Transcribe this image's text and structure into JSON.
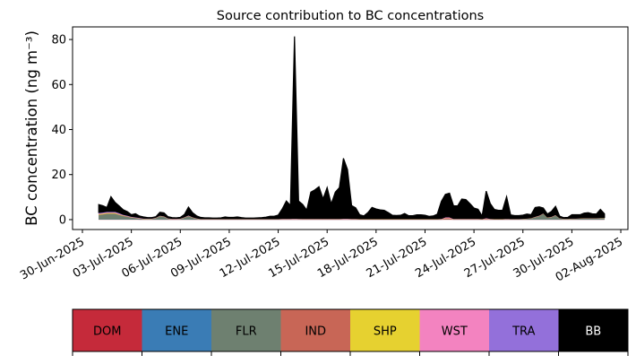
{
  "chart_data": {
    "type": "area",
    "stacked": true,
    "title": "Source contribution to BC concentrations",
    "xlabel": "",
    "ylabel": "BC concentration (ng m⁻³)",
    "x_start": "2025-07-01T00:00:00Z",
    "interval_hours": 6,
    "xlim": [
      "2025-06-29T09:30:00Z",
      "2025-08-02T10:30:00Z"
    ],
    "ylim": [
      -4.4,
      85.6
    ],
    "yticks": [
      0,
      20,
      40,
      60,
      80
    ],
    "xticks": [
      {
        "date": "2025-06-30",
        "label": "30-Jun-2025"
      },
      {
        "date": "2025-07-03",
        "label": "03-Jul-2025"
      },
      {
        "date": "2025-07-06",
        "label": "06-Jul-2025"
      },
      {
        "date": "2025-07-09",
        "label": "09-Jul-2025"
      },
      {
        "date": "2025-07-12",
        "label": "12-Jul-2025"
      },
      {
        "date": "2025-07-15",
        "label": "15-Jul-2025"
      },
      {
        "date": "2025-07-18",
        "label": "18-Jul-2025"
      },
      {
        "date": "2025-07-21",
        "label": "21-Jul-2025"
      },
      {
        "date": "2025-07-24",
        "label": "24-Jul-2025"
      },
      {
        "date": "2025-07-27",
        "label": "27-Jul-2025"
      },
      {
        "date": "2025-07-30",
        "label": "30-Jul-2025"
      },
      {
        "date": "2025-08-02",
        "label": "02-Aug-2025"
      }
    ],
    "grid": false,
    "legend_placement": "bottom",
    "series": [
      {
        "name": "DOM",
        "color": "#c52a3a",
        "text_color": "#000000",
        "values": [
          0.1,
          0.1,
          0.1,
          0.1,
          0.1,
          0.1,
          0.1,
          0.1,
          0.1,
          0.1,
          0.05,
          0.05,
          0.05,
          0.05,
          0.05,
          0.05,
          0.05,
          0.05,
          0.05,
          0.05,
          0.05,
          0.05,
          0.05,
          0.05,
          0.05,
          0.05,
          0.05,
          0.05,
          0.05,
          0.05,
          0.05,
          0.05,
          0.05,
          0.05,
          0.05,
          0.05,
          0.05,
          0.05,
          0.05,
          0.05,
          0.05,
          0.05,
          0.05,
          0.05,
          0.05,
          0.05,
          0.05,
          0.05,
          0.05,
          0.05,
          0.05,
          0.05,
          0.05,
          0.05,
          0.05,
          0.05,
          0.05,
          0.05,
          0.05,
          0.05,
          0.05,
          0.05,
          0.05,
          0.05,
          0.05,
          0.05,
          0.05,
          0.05,
          0.05,
          0.05,
          0.05,
          0.05,
          0.05,
          0.05,
          0.05,
          0.05,
          0.05,
          0.05,
          0.05,
          0.05,
          0.05,
          0.05,
          0.05,
          0.05,
          0.05,
          0.1,
          0.1,
          0.05,
          0.05,
          0.05,
          0.05,
          0.05,
          0.05,
          0.05,
          0.05,
          0.05,
          0.05,
          0.05,
          0.05,
          0.05,
          0.05,
          0.05,
          0.05,
          0.05,
          0.05,
          0.05,
          0.05,
          0.05,
          0.05,
          0.05,
          0.05,
          0.05,
          0.05,
          0.05,
          0.05,
          0.05,
          0.05,
          0.05,
          0.05,
          0.05,
          0.05,
          0.05,
          0.05,
          0.05,
          0.05
        ]
      },
      {
        "name": "ENE",
        "color": "#3a7cb5",
        "text_color": "#000000",
        "values": [
          0.02,
          0.02,
          0.02,
          0.02,
          0.02,
          0.02,
          0.02,
          0.02,
          0.02,
          0.02,
          0.02,
          0.02,
          0.02,
          0.02,
          0.02,
          0.02,
          0.02,
          0.02,
          0.02,
          0.02,
          0.02,
          0.02,
          0.02,
          0.02,
          0.02,
          0.02,
          0.02,
          0.02,
          0.02,
          0.02,
          0.02,
          0.02,
          0.02,
          0.02,
          0.02,
          0.02,
          0.02,
          0.02,
          0.02,
          0.02,
          0.02,
          0.02,
          0.02,
          0.02,
          0.02,
          0.02,
          0.02,
          0.02,
          0.02,
          0.02,
          0.02,
          0.02,
          0.02,
          0.02,
          0.02,
          0.02,
          0.02,
          0.02,
          0.02,
          0.02,
          0.02,
          0.02,
          0.02,
          0.02,
          0.02,
          0.02,
          0.02,
          0.02,
          0.02,
          0.02,
          0.02,
          0.02,
          0.02,
          0.02,
          0.02,
          0.02,
          0.02,
          0.02,
          0.02,
          0.02,
          0.02,
          0.02,
          0.02,
          0.02,
          0.02,
          0.02,
          0.02,
          0.02,
          0.02,
          0.02,
          0.02,
          0.02,
          0.02,
          0.02,
          0.02,
          0.02,
          0.02,
          0.02,
          0.02,
          0.02,
          0.02,
          0.02,
          0.02,
          0.02,
          0.02,
          0.02,
          0.02,
          0.02,
          0.02,
          0.02,
          0.02,
          0.02,
          0.02,
          0.02,
          0.02,
          0.02,
          0.02,
          0.02,
          0.02,
          0.02,
          0.02,
          0.02,
          0.02,
          0.02,
          0.02
        ]
      },
      {
        "name": "FLR",
        "color": "#6e8070",
        "text_color": "#000000",
        "values": [
          2,
          2.2,
          2.5,
          2.5,
          2.5,
          2,
          1.5,
          1.2,
          0.8,
          0.6,
          0.4,
          0.2,
          0.2,
          0.2,
          0.6,
          1.5,
          1.2,
          0.3,
          0.1,
          0.1,
          0.2,
          0.8,
          1.5,
          0.8,
          0.3,
          0.1,
          0.1,
          0.1,
          0.1,
          0.1,
          0.1,
          0.1,
          0.1,
          0.1,
          0.1,
          0.1,
          0.1,
          0.1,
          0.1,
          0.1,
          0.1,
          0.1,
          0.1,
          0.1,
          0.1,
          0.1,
          0.1,
          0.1,
          0.1,
          0.1,
          0.05,
          0.05,
          0.05,
          0.05,
          0.05,
          0.05,
          0.05,
          0.05,
          0.05,
          0.05,
          0.05,
          0.05,
          0.05,
          0.05,
          0.05,
          0.05,
          0.05,
          0.05,
          0.05,
          0.05,
          0.05,
          0.05,
          0.05,
          0.05,
          0.05,
          0.05,
          0.05,
          0.05,
          0.05,
          0.05,
          0.05,
          0.05,
          0.05,
          0.05,
          0.05,
          0.05,
          0.05,
          0.05,
          0.05,
          0.05,
          0.05,
          0.05,
          0.05,
          0.05,
          0.05,
          0.05,
          0.05,
          0.05,
          0.05,
          0.05,
          0.1,
          0.1,
          0.1,
          0.1,
          0.2,
          0.3,
          0.5,
          1,
          1.5,
          2.5,
          0.8,
          1,
          1.8,
          0.5,
          0.2,
          0.2,
          0.3,
          0.3,
          0.4,
          0.5,
          0.5,
          0.5,
          0.5,
          0.6,
          0.6
        ]
      },
      {
        "name": "IND",
        "color": "#c86656",
        "text_color": "#000000",
        "values": [
          0.05,
          0.05,
          0.05,
          0.05,
          0.05,
          0.05,
          0.05,
          0.05,
          0.05,
          0.05,
          0.05,
          0.05,
          0.05,
          0.05,
          0.05,
          0.05,
          0.05,
          0.05,
          0.05,
          0.05,
          0.05,
          0.05,
          0.05,
          0.05,
          0.05,
          0.05,
          0.05,
          0.05,
          0.05,
          0.05,
          0.05,
          0.05,
          0.05,
          0.05,
          0.05,
          0.05,
          0.05,
          0.05,
          0.05,
          0.05,
          0.05,
          0.05,
          0.05,
          0.05,
          0.05,
          0.05,
          0.05,
          0.05,
          0.05,
          0.05,
          0.05,
          0.05,
          0.05,
          0.05,
          0.05,
          0.05,
          0.05,
          0.05,
          0.05,
          0.05,
          0.05,
          0.05,
          0.05,
          0.05,
          0.05,
          0.05,
          0.05,
          0.05,
          0.05,
          0.05,
          0.05,
          0.05,
          0.05,
          0.05,
          0.05,
          0.05,
          0.05,
          0.05,
          0.05,
          0.05,
          0.05,
          0.05,
          0.05,
          0.05,
          0.05,
          0.4,
          0.4,
          0.05,
          0.05,
          0.05,
          0.05,
          0.05,
          0.05,
          0.05,
          0.05,
          0.2,
          0.05,
          0.05,
          0.05,
          0.05,
          0.05,
          0.05,
          0.05,
          0.05,
          0.05,
          0.05,
          0.05,
          0.05,
          0.05,
          0.05,
          0.05,
          0.05,
          0.05,
          0.05,
          0.05,
          0.05,
          0.05,
          0.05,
          0.05,
          0.05,
          0.05,
          0.05,
          0.05,
          0.05,
          0.05
        ]
      },
      {
        "name": "SHP",
        "color": "#e6d130",
        "text_color": "#000000",
        "values": [
          0.3,
          0.3,
          0.3,
          0.3,
          0.3,
          0.2,
          0.2,
          0.1,
          0.1,
          0.05,
          0.05,
          0.05,
          0.05,
          0.05,
          0.05,
          0.05,
          0.05,
          0.05,
          0.05,
          0.05,
          0.05,
          0.05,
          0.05,
          0.05,
          0.05,
          0.05,
          0.05,
          0.05,
          0.05,
          0.05,
          0.05,
          0.05,
          0.05,
          0.05,
          0.05,
          0.05,
          0.05,
          0.05,
          0.05,
          0.05,
          0.05,
          0.05,
          0.05,
          0.05,
          0.05,
          0.05,
          0.05,
          0.05,
          0.05,
          0.05,
          0.05,
          0.05,
          0.05,
          0.05,
          0.05,
          0.05,
          0.05,
          0.05,
          0.05,
          0.05,
          0.05,
          0.05,
          0.05,
          0.05,
          0.05,
          0.05,
          0.05,
          0.05,
          0.05,
          0.05,
          0.05,
          0.05,
          0.05,
          0.05,
          0.05,
          0.05,
          0.05,
          0.05,
          0.05,
          0.05,
          0.05,
          0.05,
          0.05,
          0.05,
          0.05,
          0.05,
          0.05,
          0.05,
          0.05,
          0.05,
          0.05,
          0.05,
          0.05,
          0.05,
          0.05,
          0.05,
          0.05,
          0.05,
          0.05,
          0.05,
          0.05,
          0.05,
          0.05,
          0.05,
          0.05,
          0.05,
          0.05,
          0.05,
          0.05,
          0.05,
          0.05,
          0.05,
          0.05,
          0.05,
          0.05,
          0.05,
          0.05,
          0.05,
          0.05,
          0.05,
          0.05,
          0.05,
          0.05,
          0.05,
          0.05
        ]
      },
      {
        "name": "WST",
        "color": "#f383c0",
        "text_color": "#000000",
        "values": [
          0.2,
          0.2,
          0.2,
          0.2,
          0.2,
          0.2,
          0.1,
          0.1,
          0.1,
          0.1,
          0.1,
          0.1,
          0.1,
          0.1,
          0.1,
          0.1,
          0.1,
          0.1,
          0.1,
          0.1,
          0.1,
          0.1,
          0.1,
          0.1,
          0.1,
          0.1,
          0.1,
          0.1,
          0.1,
          0.1,
          0.1,
          0.1,
          0.1,
          0.1,
          0.1,
          0.1,
          0.1,
          0.1,
          0.1,
          0.1,
          0.1,
          0.1,
          0.1,
          0.1,
          0.1,
          0.1,
          0.1,
          0.1,
          0.1,
          0.1,
          0.1,
          0.1,
          0.1,
          0.1,
          0.1,
          0.1,
          0.1,
          0.1,
          0.1,
          0.1,
          0.1,
          0.1,
          0.1,
          0.1,
          0.1,
          0.1,
          0.1,
          0.1,
          0.1,
          0.1,
          0.1,
          0.1,
          0.1,
          0.1,
          0.1,
          0.1,
          0.1,
          0.1,
          0.1,
          0.1,
          0.1,
          0.1,
          0.1,
          0.1,
          0.1,
          0.4,
          0.4,
          0.1,
          0.1,
          0.1,
          0.1,
          0.1,
          0.1,
          0.1,
          0.1,
          0.3,
          0.1,
          0.1,
          0.1,
          0.1,
          0.1,
          0.1,
          0.1,
          0.1,
          0.1,
          0.1,
          0.1,
          0.1,
          0.1,
          0.1,
          0.1,
          0.1,
          0.1,
          0.1,
          0.1,
          0.1,
          0.1,
          0.1,
          0.1,
          0.1,
          0.1,
          0.1,
          0.1,
          0.1,
          0.1
        ]
      },
      {
        "name": "TRA",
        "color": "#9370da",
        "text_color": "#000000",
        "values": [
          0.5,
          0.5,
          0.5,
          0.5,
          0.5,
          0.5,
          0.4,
          0.4,
          0.3,
          0.3,
          0.3,
          0.2,
          0.2,
          0.2,
          0.2,
          0.2,
          0.2,
          0.2,
          0.2,
          0.2,
          0.2,
          0.2,
          0.3,
          0.2,
          0.2,
          0.1,
          0.1,
          0.1,
          0.1,
          0.1,
          0.1,
          0.1,
          0.1,
          0.1,
          0.1,
          0.1,
          0.1,
          0.1,
          0.1,
          0.1,
          0.1,
          0.1,
          0.1,
          0.1,
          0.1,
          0.2,
          0.2,
          0.2,
          0.3,
          0.2,
          0.2,
          0.2,
          0.2,
          0.2,
          0.2,
          0.2,
          0.2,
          0.2,
          0.2,
          0.2,
          0.3,
          0.3,
          0.2,
          0.2,
          0.1,
          0.1,
          0.1,
          0.1,
          0.1,
          0.1,
          0.1,
          0.1,
          0.1,
          0.1,
          0.1,
          0.1,
          0.1,
          0.1,
          0.1,
          0.1,
          0.1,
          0.1,
          0.1,
          0.1,
          0.2,
          0.2,
          0.2,
          0.2,
          0.2,
          0.2,
          0.2,
          0.2,
          0.2,
          0.2,
          0.1,
          0.2,
          0.2,
          0.1,
          0.1,
          0.1,
          0.2,
          0.1,
          0.1,
          0.1,
          0.1,
          0.1,
          0.1,
          0.2,
          0.2,
          0.2,
          0.1,
          0.2,
          0.2,
          0.1,
          0.1,
          0.1,
          0.1,
          0.1,
          0.1,
          0.1,
          0.1,
          0.1,
          0.1,
          0.1,
          0.1
        ]
      },
      {
        "name": "BB",
        "color": "#000000",
        "text_color": "#ffffff",
        "values": [
          3.5,
          2.8,
          1.7,
          6.5,
          4,
          3,
          2,
          1.6,
          0.7,
          1.4,
          0.6,
          0.5,
          0.2,
          0.2,
          0.2,
          1.3,
          1.3,
          0.5,
          0.3,
          0.2,
          0.3,
          1,
          3.5,
          1.8,
          0.9,
          0.5,
          0.3,
          0.3,
          0.2,
          0.2,
          0.3,
          0.7,
          0.5,
          0.5,
          0.7,
          0.4,
          0.2,
          0.2,
          0.2,
          0.3,
          0.4,
          0.6,
          1,
          1,
          1.5,
          4.2,
          7.7,
          5.7,
          80.7,
          7.7,
          6.2,
          3.7,
          11.7,
          12.7,
          14.1,
          8.7,
          13.7,
          6.4,
          11.7,
          13.7,
          26.6,
          21.6,
          5.7,
          4.7,
          1.7,
          1.2,
          2.7,
          5,
          4.3,
          3.9,
          3.7,
          2.7,
          1.5,
          1.4,
          1.5,
          2.3,
          1.3,
          1.3,
          1.7,
          1.7,
          1.5,
          1,
          1.2,
          2,
          7.6,
          10,
          10.5,
          5.6,
          5.6,
          8.6,
          8.4,
          6.6,
          4.6,
          4.1,
          1.2,
          11.8,
          6.6,
          4.1,
          3.7,
          3.7,
          9.6,
          1.6,
          1.3,
          1.3,
          1.4,
          1.8,
          1.3,
          3.9,
          3.7,
          2.2,
          1.3,
          2.2,
          3.6,
          0.7,
          0.3,
          0.4,
          1.5,
          1.5,
          1.4,
          2,
          2.2,
          1.7,
          1.6,
          3.6,
          1.6
        ]
      }
    ]
  }
}
